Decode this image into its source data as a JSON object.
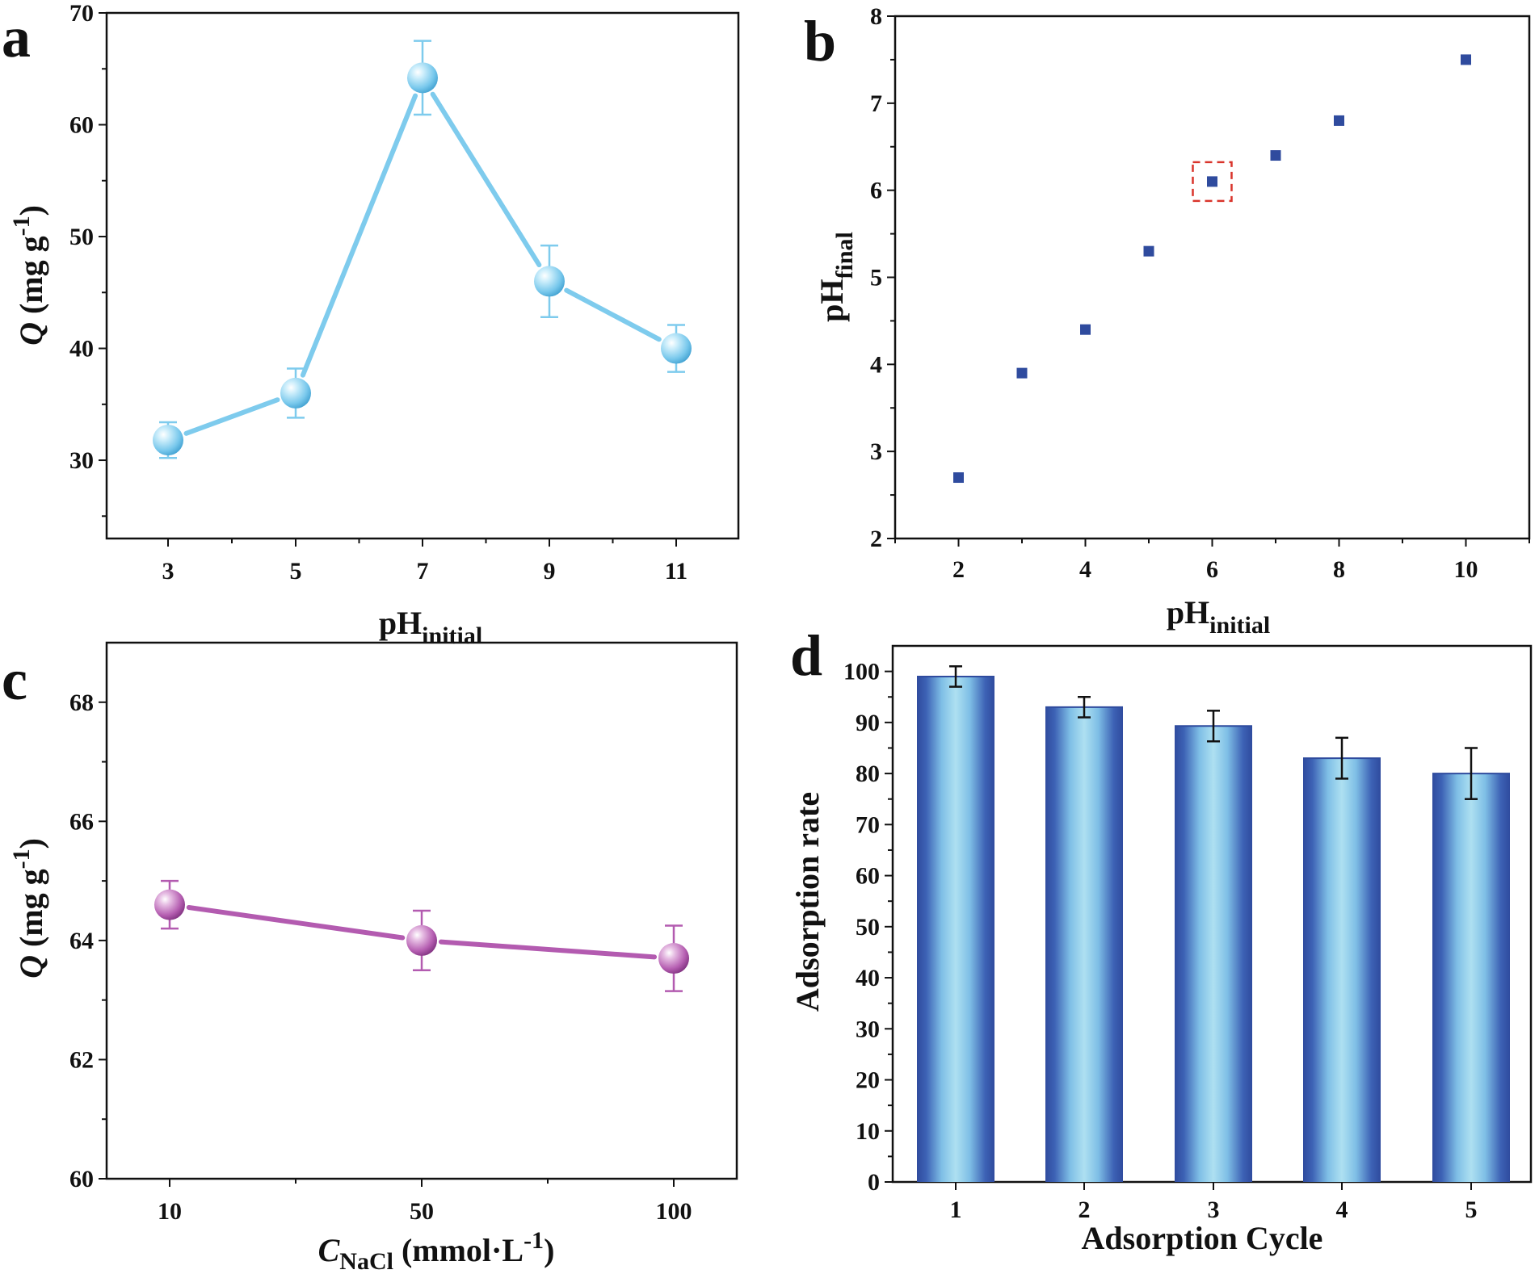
{
  "chart_data": [
    {
      "panel": "a",
      "type": "line",
      "x": [
        3,
        5,
        7,
        9,
        11
      ],
      "values": [
        31.8,
        36.0,
        64.2,
        46.0,
        40.0
      ],
      "errors": [
        1.6,
        2.2,
        3.3,
        3.2,
        2.1
      ],
      "xlabel": "pH",
      "xlabel_sub": "initial",
      "ylabel_italic": "Q",
      "ylabel_rest": " (mg g",
      "ylabel_sup": "-1",
      "ylabel_close": ")",
      "xticks": [
        "3",
        "5",
        "7",
        "9",
        "11"
      ],
      "yticks": [
        "30",
        "40",
        "50",
        "60",
        "70"
      ],
      "ylim": [
        23,
        70
      ],
      "color": "#7ecbed"
    },
    {
      "panel": "b",
      "type": "scatter",
      "x": [
        2,
        3,
        4,
        5,
        6,
        7,
        8,
        10
      ],
      "values": [
        2.7,
        3.9,
        4.4,
        5.3,
        6.1,
        6.4,
        6.8,
        7.5
      ],
      "highlight_x": 6,
      "xlabel": "pH",
      "xlabel_sub": "initial",
      "ylabel": "pH",
      "ylabel_sub": "final",
      "xticks": [
        "2",
        "4",
        "6",
        "8",
        "10"
      ],
      "yticks": [
        "2",
        "3",
        "4",
        "5",
        "6",
        "7",
        "8"
      ],
      "xlim": [
        1,
        11
      ],
      "ylim": [
        2,
        8
      ],
      "color": "#2f4b9e",
      "highlight_color": "#d9342b"
    },
    {
      "panel": "c",
      "type": "line",
      "x": [
        10,
        50,
        100
      ],
      "values": [
        64.6,
        64.0,
        63.7
      ],
      "errors": [
        0.4,
        0.5,
        0.55
      ],
      "xlabel_italic": "C",
      "xlabel_sub": "NaCl",
      "xlabel_rest": " (mmol·L",
      "xlabel_sup": "-1",
      "xlabel_close": ")",
      "ylabel_italic": "Q",
      "ylabel_rest": " (mg g",
      "ylabel_sup": "-1",
      "ylabel_close": ")",
      "xticks": [
        "10",
        "50",
        "100"
      ],
      "yticks": [
        "60",
        "62",
        "64",
        "66",
        "68"
      ],
      "ylim": [
        60,
        69
      ],
      "color": "#b35bb0"
    },
    {
      "panel": "d",
      "type": "bar",
      "categories": [
        "1",
        "2",
        "3",
        "4",
        "5"
      ],
      "values": [
        99,
        93,
        89.3,
        83,
        80
      ],
      "errors": [
        2,
        2,
        3,
        4,
        5
      ],
      "xlabel": "Adsorption Cycle",
      "ylabel": "Adsorption rate",
      "yticks": [
        "0",
        "10",
        "20",
        "30",
        "40",
        "50",
        "60",
        "70",
        "80",
        "90",
        "100"
      ],
      "ylim": [
        0,
        105
      ],
      "bar_edge_color": "#2f4b9e",
      "bar_center_color": "#a6dcef"
    }
  ]
}
